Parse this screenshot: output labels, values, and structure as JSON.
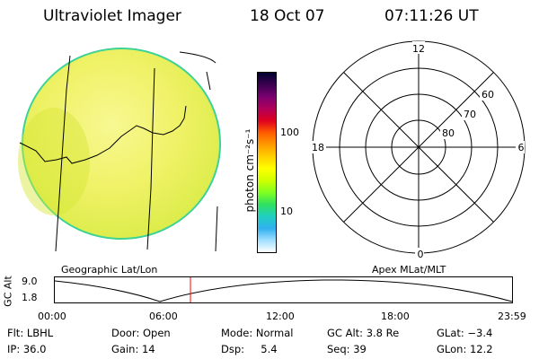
{
  "header": {
    "title": "Ultraviolet Imager",
    "date": "18 Oct 07",
    "time": "07:11:26 UT"
  },
  "colorbar": {
    "unit_label": "photon cm⁻²s⁻¹",
    "ticks": [
      "100",
      "10"
    ],
    "colors": [
      "#000030",
      "#3a0050",
      "#7a0070",
      "#b0005a",
      "#e00020",
      "#ff5a00",
      "#ff9a00",
      "#ffd000",
      "#ffff00",
      "#d0ff00",
      "#80ff20",
      "#30e060",
      "#20d0c0",
      "#30b0f0",
      "#a0e0ff",
      "#ffffff"
    ]
  },
  "image": {
    "caption": "Geographic Lat/Lon",
    "disk_color": "#e8ec40",
    "edge_color": "#30d090"
  },
  "polar": {
    "caption": "Apex MLat/MLT",
    "mlt_labels": [
      "12",
      "18",
      "6",
      "0"
    ],
    "lat_labels": [
      "60",
      "70",
      "80"
    ]
  },
  "altitude_plot": {
    "y_label": "GC Alt",
    "y_ticks": [
      "9.0",
      "1.8"
    ],
    "x_ticks": [
      "00:00",
      "06:00",
      "12:00",
      "18:00",
      "23:59"
    ],
    "marker_color": "#ff0000"
  },
  "info": {
    "rows": [
      [
        "Flt: LBHL",
        "Door: Open",
        "Mode: Normal",
        "GC Alt: 3.8 Re",
        "GLat: −3.4"
      ],
      [
        "IP: 36.0",
        "Gain: 14",
        "Dsp:     5.4",
        "Seq: 39",
        "GLon: 12.2"
      ]
    ]
  }
}
